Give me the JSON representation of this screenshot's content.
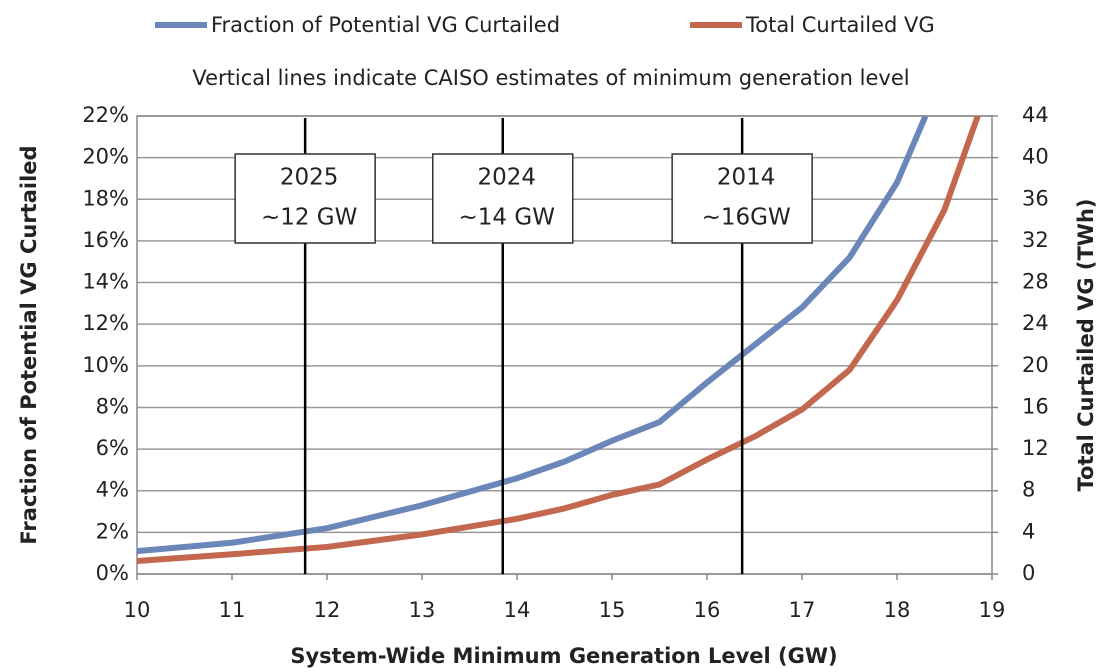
{
  "chart_data": {
    "type": "line",
    "subtitle": "Vertical lines indicate CAISO estimates of minimum generation level",
    "x_label": "System-Wide Minimum Generation Level (GW)",
    "y_label": "Fraction of Potential VG Curtailed",
    "y2_label": "Total Curtailed VG (TWh)",
    "xlim": [
      10,
      19
    ],
    "xticks": [
      10,
      11,
      12,
      13,
      14,
      15,
      16,
      17,
      18,
      19
    ],
    "ylim": [
      0,
      22
    ],
    "yticks": [
      {
        "value": 0,
        "label": "0%"
      },
      {
        "value": 2,
        "label": "2%"
      },
      {
        "value": 4,
        "label": "4%"
      },
      {
        "value": 6,
        "label": "6%"
      },
      {
        "value": 8,
        "label": "8%"
      },
      {
        "value": 10,
        "label": "10%"
      },
      {
        "value": 12,
        "label": "12%"
      },
      {
        "value": 14,
        "label": "14%"
      },
      {
        "value": 16,
        "label": "16%"
      },
      {
        "value": 18,
        "label": "18%"
      },
      {
        "value": 20,
        "label": "20%"
      },
      {
        "value": 22,
        "label": "22%"
      }
    ],
    "y2lim": [
      0,
      44
    ],
    "y2ticks": [
      0,
      4,
      8,
      12,
      16,
      20,
      24,
      28,
      32,
      36,
      40,
      44
    ],
    "grid": true,
    "legend": "top",
    "series": [
      {
        "name": "Fraction of Potential VG Curtailed",
        "color": "#6b86b9",
        "x": [
          10,
          11,
          12,
          13,
          14,
          14.5,
          15,
          15.5,
          16,
          16.5,
          17,
          17.5,
          18,
          18.3
        ],
        "values": [
          1.1,
          1.5,
          2.2,
          3.3,
          4.6,
          5.4,
          6.4,
          7.3,
          9.2,
          11.0,
          12.8,
          15.2,
          18.8,
          22
        ]
      },
      {
        "name": "Total Curtailed VG",
        "color": "#c4674f",
        "axis": "y2",
        "x": [
          10,
          11,
          12,
          13,
          14,
          14.5,
          15,
          15.5,
          16,
          16.5,
          17,
          17.5,
          18,
          18.5,
          18.85
        ],
        "values": [
          1.25,
          1.9,
          2.6,
          3.8,
          5.3,
          6.3,
          7.6,
          8.6,
          11.0,
          13.2,
          15.8,
          19.6,
          26.3,
          35,
          44
        ]
      }
    ],
    "annotations": [
      {
        "x": 11.77,
        "text": [
          "2025",
          "~12 GW"
        ]
      },
      {
        "x": 13.85,
        "text": [
          "2024",
          "~14 GW"
        ]
      },
      {
        "x": 16.37,
        "text": [
          "2014",
          "~16GW"
        ]
      }
    ]
  }
}
